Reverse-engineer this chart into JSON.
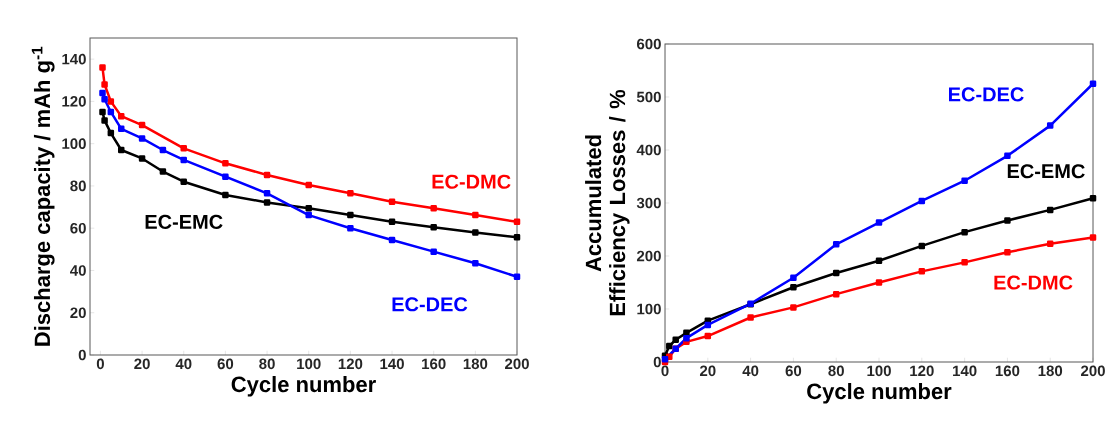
{
  "chart_data": [
    {
      "type": "line",
      "xlabel": "Cycle number",
      "ylabel": "Discharge capacity / mAh g$^{-1}$",
      "xlim": [
        -5,
        200
      ],
      "ylim": [
        0,
        150
      ],
      "xticks": [
        0,
        20,
        40,
        60,
        80,
        100,
        120,
        140,
        160,
        180,
        200
      ],
      "yticks": [
        0,
        20,
        40,
        60,
        80,
        100,
        120,
        140
      ],
      "marker": "square",
      "series": [
        {
          "name": "EC-DMC",
          "color": "#ff0000",
          "x": [
            1,
            2,
            5,
            10,
            20,
            40,
            60,
            80,
            100,
            120,
            140,
            160,
            180,
            200
          ],
          "values": [
            136,
            128,
            120,
            113,
            108.8,
            97.8,
            90.7,
            85.2,
            80.4,
            76.5,
            72.5,
            69.4,
            66.2,
            63
          ]
        },
        {
          "name": "EC-EMC",
          "color": "#000000",
          "x": [
            1,
            2,
            5,
            10,
            20,
            30,
            40,
            60,
            80,
            100,
            120,
            140,
            160,
            180,
            200
          ],
          "values": [
            115,
            111,
            105,
            97,
            93,
            86.8,
            82,
            75.7,
            72.2,
            69.4,
            66.2,
            63,
            60.4,
            58,
            55.7
          ]
        },
        {
          "name": "EC-DEC",
          "color": "#0000ff",
          "x": [
            1,
            2,
            5,
            10,
            20,
            30,
            40,
            60,
            80,
            100,
            120,
            140,
            160,
            180,
            200
          ],
          "values": [
            124,
            121,
            115,
            107,
            102.5,
            97,
            92.3,
            84.4,
            76.5,
            66.2,
            60,
            54.4,
            48.9,
            43.4,
            37
          ]
        }
      ]
    },
    {
      "type": "line",
      "xlabel": "Cycle number",
      "ylabel": "Accumulated Efficiency Losses / %",
      "xlim": [
        0,
        200
      ],
      "ylim": [
        0,
        600
      ],
      "xticks": [
        0,
        20,
        40,
        60,
        80,
        100,
        120,
        140,
        160,
        180,
        200
      ],
      "yticks": [
        0,
        100,
        200,
        300,
        400,
        500,
        600
      ],
      "marker": "square",
      "series": [
        {
          "name": "EC-EMC",
          "color": "#000000",
          "x": [
            0,
            2,
            5,
            10,
            20,
            40,
            60,
            80,
            100,
            120,
            140,
            160,
            180,
            200
          ],
          "values": [
            12,
            30,
            42,
            55,
            78,
            109,
            141,
            168,
            191,
            219,
            245,
            267,
            287,
            309
          ]
        },
        {
          "name": "EC-DMC",
          "color": "#ff0000",
          "x": [
            0,
            2,
            5,
            10,
            20,
            40,
            60,
            80,
            100,
            120,
            140,
            160,
            180,
            200
          ],
          "values": [
            0,
            10,
            25,
            38,
            49,
            84,
            103,
            128,
            150,
            171,
            188,
            207,
            223,
            235
          ]
        },
        {
          "name": "EC-DEC",
          "color": "#0000ff",
          "x": [
            0,
            5,
            10,
            20,
            40,
            60,
            80,
            100,
            120,
            140,
            160,
            180,
            200
          ],
          "values": [
            5,
            25,
            45,
            70,
            110,
            159,
            222,
            263,
            304,
            342,
            389,
            446,
            525
          ]
        }
      ]
    }
  ]
}
